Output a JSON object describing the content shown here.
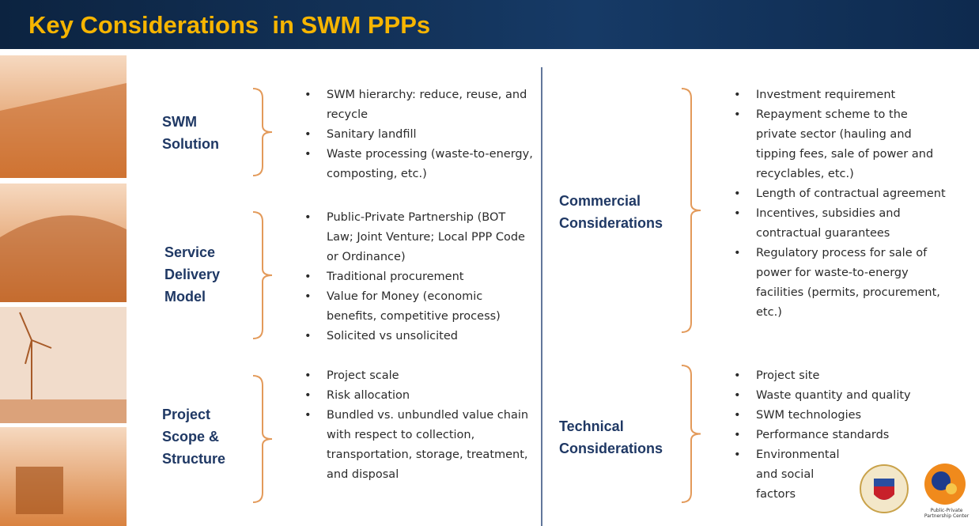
{
  "header": {
    "title": "Key Considerations  in SWM PPPs"
  },
  "sections": [
    {
      "label": "SWM Solution",
      "bullets": [
        "SWM hierarchy: reduce, reuse, and recycle",
        "Sanitary landfill",
        "Waste processing (waste-to-energy, composting, etc.)"
      ]
    },
    {
      "label": "Service Delivery Model",
      "bullets": [
        "Public-Private Partnership (BOT Law; Joint Venture; Local PPP Code or Ordinance)",
        "Traditional procurement",
        "Value for Money (economic benefits, competitive process)",
        "Solicited vs unsolicited"
      ]
    },
    {
      "label": "Project Scope & Structure",
      "bullets": [
        "Project scale",
        "Risk allocation",
        "Bundled vs. unbundled value chain with respect to collection, transportation, storage, treatment, and disposal"
      ]
    },
    {
      "label": "Commercial Considerations",
      "bullets": [
        "Investment requirement",
        "Repayment scheme to the private sector (hauling and tipping fees, sale of power and recyclables, etc.)",
        "Length of contractual agreement",
        "Incentives, subsidies and contractual guarantees",
        "Regulatory process for sale of power for waste-to-energy facilities (permits, procurement, etc.)"
      ]
    },
    {
      "label": "Technical Considerations",
      "bullets": [
        "Project site",
        "Waste quantity and quality",
        "SWM technologies",
        "Performance standards",
        "Environmental and social factors"
      ]
    }
  ],
  "logo": {
    "caption": "Public-Private Partnership Center"
  }
}
